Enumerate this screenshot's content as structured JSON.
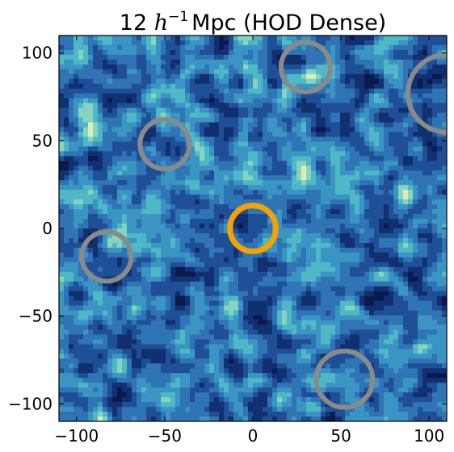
{
  "chart_data": {
    "type": "heatmap",
    "title": {
      "prefix": "12 ",
      "symbol": "h",
      "superscript": "−1",
      "suffix": "Mpc (HOD Dense)"
    },
    "xlabel": "",
    "ylabel": "",
    "xlim": [
      -110,
      110
    ],
    "ylim": [
      -110,
      110
    ],
    "x_ticks": [
      -100,
      -50,
      0,
      50,
      100
    ],
    "y_ticks": [
      -100,
      -50,
      0,
      50,
      100
    ],
    "x_tick_labels": [
      "−100",
      "−50",
      "0",
      "50",
      "100"
    ],
    "y_tick_labels": [
      "−100",
      "−50",
      "0",
      "50",
      "100"
    ],
    "colormap": [
      "#0b1a4e",
      "#11306f",
      "#1f4f96",
      "#2f74b5",
      "#3a95c2",
      "#4fb7c6",
      "#86d3bf",
      "#d7efb6"
    ],
    "grid": false,
    "circles": [
      {
        "x": 0,
        "y": 0,
        "r": 13,
        "color": "#f5a200",
        "role": "center"
      },
      {
        "x": 30,
        "y": 92,
        "r": 14,
        "color": "#8a8a8a",
        "role": "void"
      },
      {
        "x": -50,
        "y": 48,
        "r": 14,
        "color": "#8a8a8a",
        "role": "void"
      },
      {
        "x": -83,
        "y": -16,
        "r": 14,
        "color": "#8a8a8a",
        "role": "void"
      },
      {
        "x": 52,
        "y": -86,
        "r": 16,
        "color": "#8a8a8a",
        "role": "void"
      },
      {
        "x": 110,
        "y": 77,
        "r": 22,
        "color": "#8a8a8a",
        "role": "void"
      }
    ]
  }
}
